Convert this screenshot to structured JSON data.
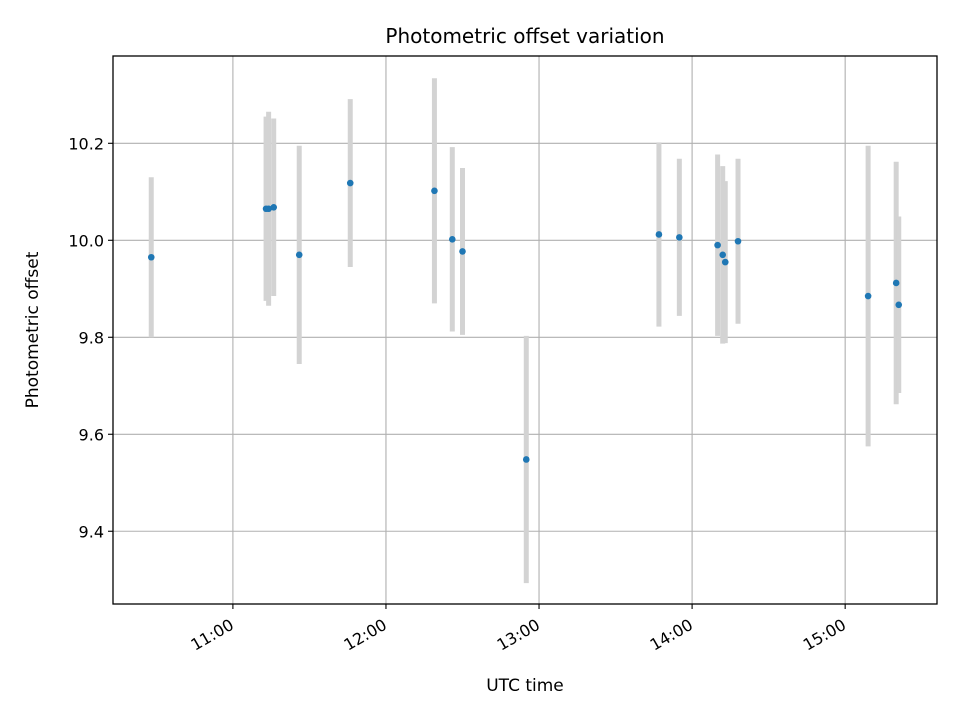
{
  "chart_data": {
    "type": "scatter",
    "title": "Photometric offset variation",
    "xlabel": "UTC time",
    "ylabel": "Photometric offset",
    "x_tick_labels": [
      "11:00",
      "12:00",
      "13:00",
      "14:00",
      "15:00"
    ],
    "x_ticks": [
      "11:00",
      "12:00",
      "13:00",
      "14:00",
      "15:00"
    ],
    "y_tick_labels": [
      "9.4",
      "9.6",
      "9.8",
      "10.0",
      "10.2"
    ],
    "y_ticks": [
      9.4,
      9.6,
      9.8,
      10.0,
      10.2
    ],
    "xlim": [
      "10:13",
      "15:36"
    ],
    "ylim": [
      9.25,
      10.38
    ],
    "grid": true,
    "point_color": "#1f77b4",
    "errorbar_color": "#d3d3d3",
    "series": [
      {
        "points": [
          {
            "x": "10:28",
            "y": 9.965,
            "err": 0.165
          },
          {
            "x": "11:13",
            "y": 10.065,
            "err": 0.19
          },
          {
            "x": "11:14",
            "y": 10.065,
            "err": 0.2
          },
          {
            "x": "11:16",
            "y": 10.068,
            "err": 0.183
          },
          {
            "x": "11:26",
            "y": 9.97,
            "err": 0.225
          },
          {
            "x": "11:46",
            "y": 10.118,
            "err": 0.173
          },
          {
            "x": "12:19",
            "y": 10.102,
            "err": 0.232
          },
          {
            "x": "12:26",
            "y": 10.002,
            "err": 0.19
          },
          {
            "x": "12:30",
            "y": 9.977,
            "err": 0.172
          },
          {
            "x": "12:55",
            "y": 9.548,
            "err": 0.255
          },
          {
            "x": "13:47",
            "y": 10.012,
            "err": 0.19
          },
          {
            "x": "13:55",
            "y": 10.006,
            "err": 0.162
          },
          {
            "x": "14:10",
            "y": 9.99,
            "err": 0.187
          },
          {
            "x": "14:12",
            "y": 9.97,
            "err": 0.183
          },
          {
            "x": "14:13",
            "y": 9.955,
            "err": 0.167
          },
          {
            "x": "14:18",
            "y": 9.998,
            "err": 0.17
          },
          {
            "x": "15:09",
            "y": 9.885,
            "err": 0.31
          },
          {
            "x": "15:20",
            "y": 9.912,
            "err": 0.25
          },
          {
            "x": "15:21",
            "y": 9.867,
            "err": 0.182
          }
        ]
      }
    ]
  }
}
